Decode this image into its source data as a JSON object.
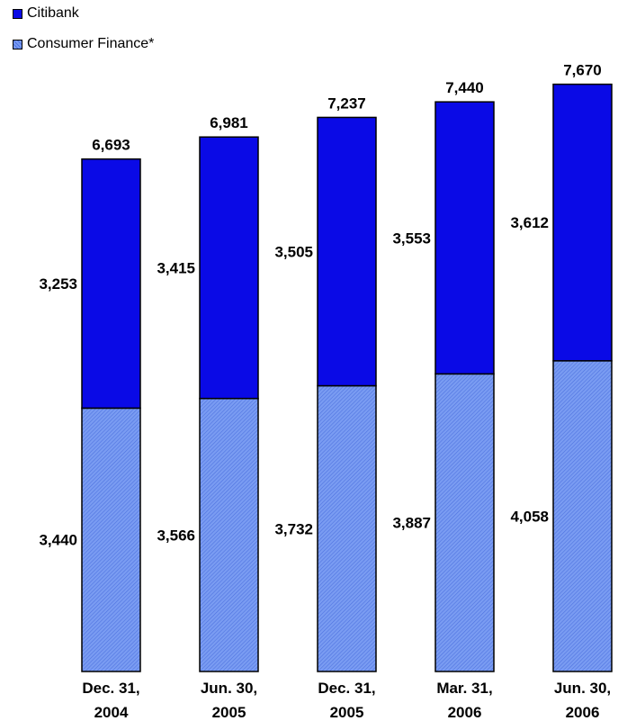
{
  "chart_data": {
    "type": "bar",
    "stacked": true,
    "categories": [
      [
        "Dec. 31,",
        "2004"
      ],
      [
        "Jun. 30,",
        "2005"
      ],
      [
        "Dec. 31,",
        "2005"
      ],
      [
        "Mar. 31,",
        "2006"
      ],
      [
        "Jun. 30,",
        "2006"
      ]
    ],
    "series": [
      {
        "name": "Consumer Finance*",
        "values": [
          3440,
          3566,
          3732,
          3887,
          4058
        ],
        "labels": [
          "3,440",
          "3,566",
          "3,732",
          "3,887",
          "4,058"
        ],
        "color": "#6B8FEF",
        "pattern": "diagonal-hatch"
      },
      {
        "name": "Citibank",
        "values": [
          3253,
          3415,
          3505,
          3553,
          3612
        ],
        "labels": [
          "3,253",
          "3,415",
          "3,505",
          "3,553",
          "3,612"
        ],
        "color": "#0A0AE6"
      }
    ],
    "totals": [
      6693,
      6981,
      7237,
      7440,
      7670
    ],
    "total_labels": [
      "6,693",
      "6,981",
      "7,237",
      "7,440",
      "7,670"
    ],
    "ylim": [
      0,
      8500
    ],
    "grid": false,
    "legend_position": "top-left"
  },
  "legend": [
    {
      "label": "Citibank",
      "color": "#0A0AE6"
    },
    {
      "label": "Consumer Finance*",
      "color": "#6B8FEF"
    }
  ]
}
